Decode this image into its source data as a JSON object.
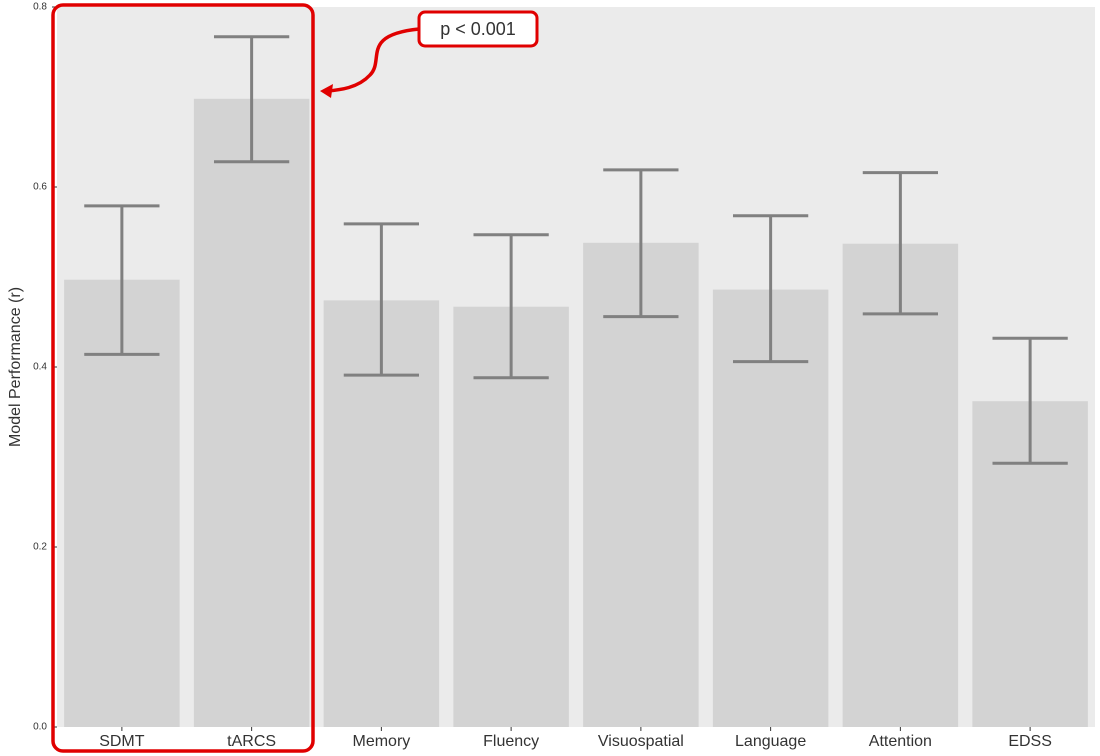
{
  "chart_data": {
    "type": "bar",
    "y_label": "Model Performance (r)",
    "annotation": "p < 0.001",
    "categories": [
      "SDMT",
      "tARCS",
      "Memory",
      "Fluency",
      "Visuospatial",
      "Language",
      "Attention",
      "EDSS"
    ],
    "values": [
      0.497,
      0.698,
      0.474,
      0.467,
      0.538,
      0.486,
      0.537,
      0.362
    ],
    "lower": [
      0.414,
      0.628,
      0.391,
      0.388,
      0.456,
      0.406,
      0.459,
      0.293
    ],
    "upper": [
      0.579,
      0.767,
      0.559,
      0.547,
      0.619,
      0.568,
      0.616,
      0.432
    ],
    "color": "#d3d3d3",
    "error_color": "#808080",
    "ylim": [
      0,
      0.8
    ],
    "yticks": [
      {
        "value": 0,
        "label": "0.0"
      },
      0.2,
      0.4,
      0.6,
      0.8
    ],
    "grid": false
  }
}
